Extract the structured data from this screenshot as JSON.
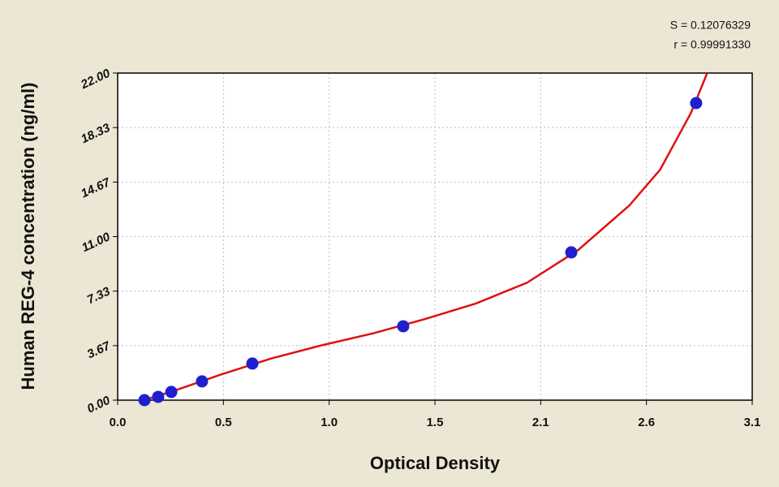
{
  "chart_data": {
    "type": "scatter",
    "x_label": "Optical Density",
    "y_label": "Human REG-4 concentration (ng/ml)",
    "annotations": [
      "S = 0.12076329",
      "r = 0.99991330"
    ],
    "x": [
      0.131,
      0.198,
      0.262,
      0.412,
      0.658,
      1.395,
      2.216,
      2.826
    ],
    "values": [
      0,
      0.22,
      0.55,
      1.26,
      2.46,
      4.97,
      9.94,
      19.98
    ],
    "color": "#1f1fd0",
    "curve": {
      "x": [
        0.13,
        0.3,
        0.5,
        0.75,
        1.0,
        1.25,
        1.5,
        1.75,
        2.0,
        2.25,
        2.5,
        2.65,
        2.8,
        2.88
      ],
      "values": [
        0,
        0.75,
        1.7,
        2.8,
        3.7,
        4.5,
        5.45,
        6.5,
        7.9,
        10.1,
        13.1,
        15.5,
        19.3,
        22.0
      ],
      "color": "#e01010"
    },
    "xlim": [
      0,
      3.1
    ],
    "ylim": [
      0,
      22
    ],
    "xticks": [
      {
        "value": 0,
        "label": "0.0"
      },
      {
        "value": 0.5167,
        "label": "0.5"
      },
      {
        "value": 1.0333,
        "label": "1.0"
      },
      {
        "value": 1.55,
        "label": "1.5"
      },
      {
        "value": 2.0667,
        "label": "2.1"
      },
      {
        "value": 2.5833,
        "label": "2.6"
      },
      {
        "value": 3.1,
        "label": "3.1"
      }
    ],
    "yticks": [
      {
        "value": 0,
        "label": "0.00"
      },
      {
        "value": 3.667,
        "label": "3.67"
      },
      {
        "value": 7.333,
        "label": "7.33"
      },
      {
        "value": 11,
        "label": "11.00"
      },
      {
        "value": 14.667,
        "label": "14.67"
      },
      {
        "value": 18.333,
        "label": "18.33"
      },
      {
        "value": 22,
        "label": "22.00"
      }
    ],
    "grid": true
  }
}
